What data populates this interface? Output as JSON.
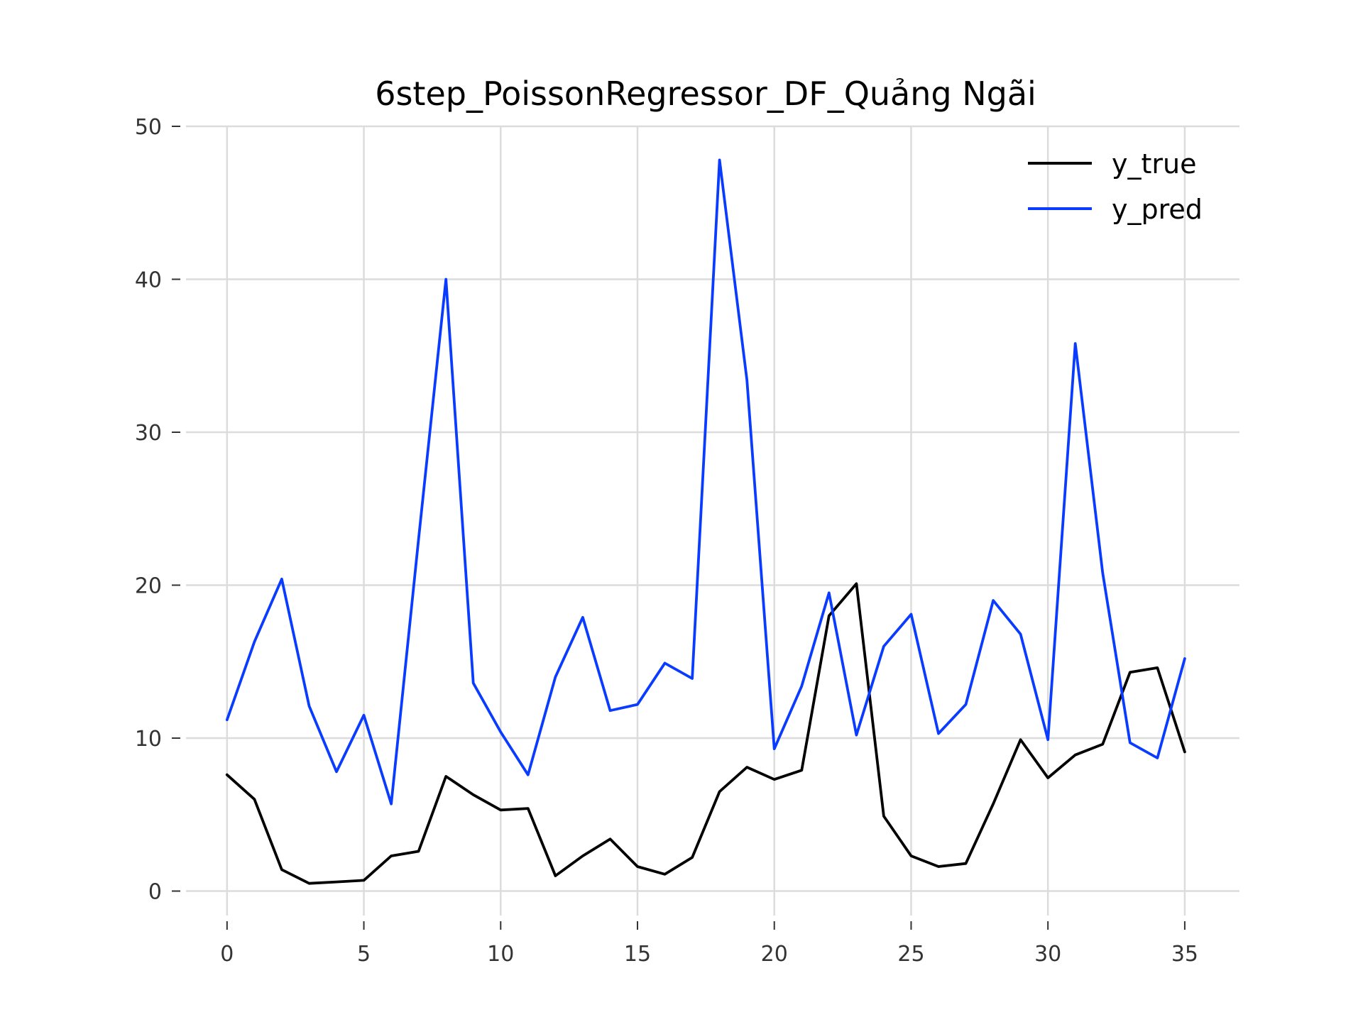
{
  "chart_data": {
    "type": "line",
    "title": "6step_PoissonRegressor_DF_Quảng Ngãi",
    "xlabel": "",
    "ylabel": "",
    "xlim": [
      -1.5,
      37
    ],
    "ylim": [
      -1.6,
      50
    ],
    "x_ticks": [
      0,
      5,
      10,
      15,
      20,
      25,
      30,
      35
    ],
    "y_ticks": [
      0,
      10,
      20,
      30,
      40,
      50
    ],
    "grid": true,
    "legend_position": "top-right",
    "x": [
      0,
      1,
      2,
      3,
      4,
      5,
      6,
      7,
      8,
      9,
      10,
      11,
      12,
      13,
      14,
      15,
      16,
      17,
      18,
      19,
      20,
      21,
      22,
      23,
      24,
      25,
      26,
      27,
      28,
      29,
      30,
      31,
      32,
      33,
      34,
      35
    ],
    "series": [
      {
        "name": "y_true",
        "color": "#000000",
        "values": [
          7.6,
          6.0,
          1.4,
          0.5,
          0.6,
          0.7,
          2.3,
          2.6,
          7.5,
          6.3,
          5.3,
          5.4,
          1.0,
          2.3,
          3.4,
          1.6,
          1.1,
          2.2,
          6.5,
          8.1,
          7.3,
          7.9,
          18.0,
          20.1,
          4.9,
          2.3,
          1.6,
          1.8,
          5.7,
          9.9,
          7.4,
          8.9,
          9.6,
          14.3,
          14.6,
          9.1
        ]
      },
      {
        "name": "y_pred",
        "color": "#0a3cff",
        "values": [
          11.2,
          16.3,
          20.4,
          12.1,
          7.8,
          11.5,
          5.7,
          23.0,
          40.0,
          13.6,
          10.4,
          7.6,
          14.0,
          17.9,
          11.8,
          12.2,
          14.9,
          13.9,
          47.8,
          33.4,
          9.3,
          13.4,
          19.5,
          10.2,
          16.0,
          18.1,
          10.3,
          12.2,
          19.0,
          16.8,
          9.9,
          35.8,
          20.8,
          9.7,
          8.7,
          15.2
        ]
      }
    ]
  }
}
